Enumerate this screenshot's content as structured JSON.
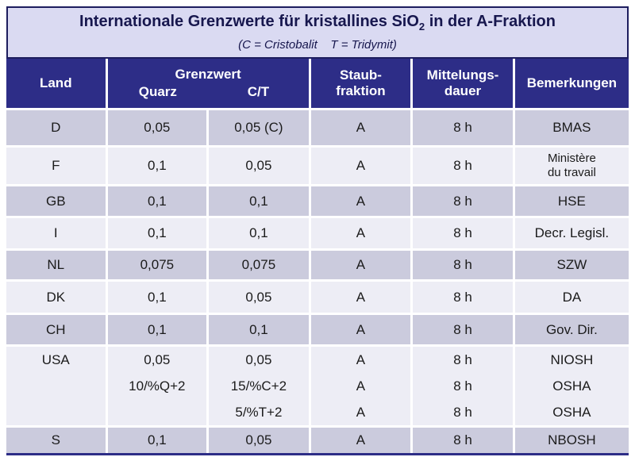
{
  "title": {
    "text_before_sub": "Internationale Grenzwerte für kristallines SiO",
    "subscript": "2",
    "text_after_sub": " in der A-Fraktion",
    "subtitle": "(C = Cristobalit    T = Tridymit)"
  },
  "header": {
    "land": "Land",
    "grenzwert": "Grenzwert",
    "quarz": "Quarz",
    "ct": "C/T",
    "staubfraktion": "Staub-\nfraktion",
    "mittelungsdauer": "Mittelungs-\ndauer",
    "bemerkungen": "Bemerkungen"
  },
  "rows": [
    {
      "land": "D",
      "quarz": "0,05",
      "ct": "0,05 (C)",
      "staubfraktion": "A",
      "dauer": "8 h",
      "bemerkung": "BMAS"
    },
    {
      "land": "F",
      "quarz": "0,1",
      "ct": "0,05",
      "staubfraktion": "A",
      "dauer": "8 h",
      "bemerkung": "Ministère\ndu travail"
    },
    {
      "land": "GB",
      "quarz": "0,1",
      "ct": "0,1",
      "staubfraktion": "A",
      "dauer": "8 h",
      "bemerkung": "HSE"
    },
    {
      "land": "I",
      "quarz": "0,1",
      "ct": "0,1",
      "staubfraktion": "A",
      "dauer": "8 h",
      "bemerkung": "Decr. Legisl."
    },
    {
      "land": "NL",
      "quarz": "0,075",
      "ct": "0,075",
      "staubfraktion": "A",
      "dauer": "8 h",
      "bemerkung": "SZW"
    },
    {
      "land": "DK",
      "quarz": "0,1",
      "ct": "0,05",
      "staubfraktion": "A",
      "dauer": "8 h",
      "bemerkung": "DA"
    },
    {
      "land": "CH",
      "quarz": "0,1",
      "ct": "0,1",
      "staubfraktion": "A",
      "dauer": "8 h",
      "bemerkung": "Gov. Dir."
    },
    {
      "land": "USA",
      "quarz": "0,05\n10/%Q+2",
      "ct": "0,05\n15/%C+2\n5/%T+2",
      "staubfraktion": "A\nA\nA",
      "dauer": "8 h\n8 h\n8 h",
      "bemerkung": "NIOSH\nOSHA\nOSHA"
    },
    {
      "land": "S",
      "quarz": "0,1",
      "ct": "0,05",
      "staubfraktion": "A",
      "dauer": "8 h",
      "bemerkung": "NBOSH"
    }
  ],
  "colors": {
    "header_navy": "#2d2d87",
    "title_background": "#dadaf2",
    "title_border": "#1d1d5e",
    "row_dark": "#cbcbdd",
    "row_light": "#ededf5",
    "text_dark": "#1b1b1b",
    "header_text": "#ffffff"
  }
}
